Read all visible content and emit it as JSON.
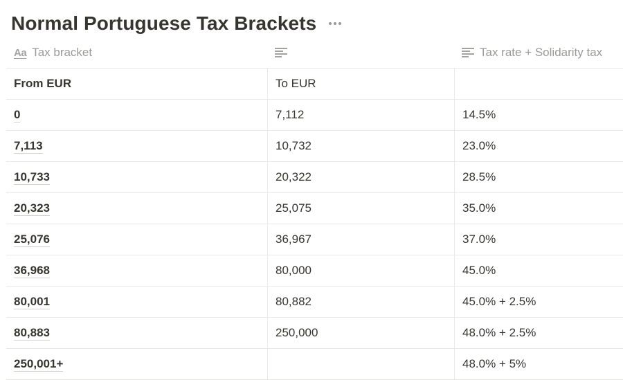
{
  "page": {
    "title": "Normal Portuguese Tax Brackets"
  },
  "icons": {
    "title_property_icon": "text-aa-icon",
    "text_property_icon": "text-lines-icon",
    "more_icon": "ellipsis-icon"
  },
  "table": {
    "columns": [
      {
        "label": "Tax bracket",
        "icon": "text-aa-icon"
      },
      {
        "label": "",
        "icon": "text-lines-icon"
      },
      {
        "label": "Tax rate + Solidarity tax",
        "icon": "text-lines-icon"
      }
    ],
    "rows": [
      {
        "bracket": "From EUR",
        "to": "To EUR",
        "rate": ""
      },
      {
        "bracket": "0",
        "to": "7,112",
        "rate": "14.5%"
      },
      {
        "bracket": "7,113",
        "to": "10,732",
        "rate": "23.0%"
      },
      {
        "bracket": "10,733",
        "to": "20,322",
        "rate": "28.5%"
      },
      {
        "bracket": "20,323",
        "to": "25,075",
        "rate": "35.0%"
      },
      {
        "bracket": "25,076",
        "to": "36,967",
        "rate": "37.0%"
      },
      {
        "bracket": "36,968",
        "to": "80,000",
        "rate": "45.0%"
      },
      {
        "bracket": "80,001",
        "to": "80,882",
        "rate": "45.0% + 2.5%"
      },
      {
        "bracket": "80,883",
        "to": "250,000",
        "rate": "48.0% + 2.5%"
      },
      {
        "bracket": "250,001+",
        "to": "",
        "rate": "48.0% + 5%"
      }
    ]
  }
}
